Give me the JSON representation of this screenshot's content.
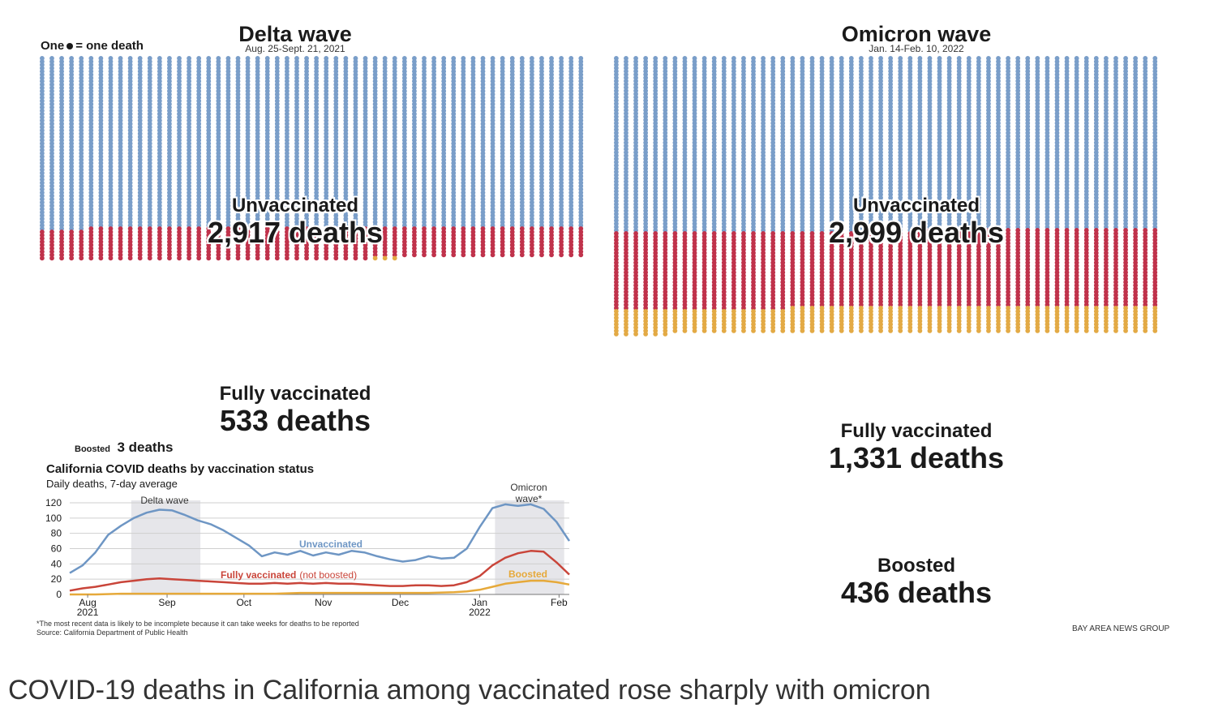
{
  "legend": {
    "prefix": "One",
    "suffix": "= one death"
  },
  "delta": {
    "title": "Delta wave",
    "dates": "Aug. 25-Sept. 21, 2021",
    "unvax_label": "Unvaccinated",
    "unvax_count": "2,917 deaths",
    "fully_label": "Fully vaccinated",
    "fully_count": "533 deaths",
    "boosted_label": "Boosted",
    "boosted_count": "3 deaths"
  },
  "omicron": {
    "title": "Omicron wave",
    "dates": "Jan. 14-Feb. 10, 2022",
    "unvax_label": "Unvaccinated",
    "unvax_count": "2,999 deaths",
    "fully_label": "Fully vaccinated",
    "fully_count": "1,331 deaths",
    "boosted_label": "Boosted",
    "boosted_count": "436 deaths"
  },
  "colors": {
    "unvax": "#7a9ec9",
    "fully": "#c0324b",
    "boosted": "#e3aa45",
    "line_unvax": "#6e96c4",
    "line_fully": "#c9453a",
    "line_boosted": "#e6a93a",
    "band": "#e6e6ea"
  },
  "chart_data": [
    {
      "type": "dot_matrix",
      "title": "Delta wave",
      "subtitle": "Aug. 25-Sept. 21, 2021",
      "unit": "One dot = one death",
      "categories": [
        "Unvaccinated",
        "Fully vaccinated",
        "Boosted"
      ],
      "values": [
        2917,
        533,
        3
      ]
    },
    {
      "type": "dot_matrix",
      "title": "Omicron wave",
      "subtitle": "Jan. 14-Feb. 10, 2022",
      "unit": "One dot = one death",
      "categories": [
        "Unvaccinated",
        "Fully vaccinated",
        "Boosted"
      ],
      "values": [
        2999,
        1331,
        436
      ]
    },
    {
      "type": "line",
      "title": "California COVID deaths by vaccination status",
      "subtitle": "Daily deaths, 7-day average",
      "ylim": [
        0,
        120
      ],
      "yticks": [
        0,
        20,
        40,
        60,
        80,
        100,
        120
      ],
      "xlim": [
        0,
        195
      ],
      "xticks": [
        {
          "x": 7,
          "label": "Aug",
          "sub": "2021"
        },
        {
          "x": 38,
          "label": "Sep",
          "sub": ""
        },
        {
          "x": 68,
          "label": "Oct",
          "sub": ""
        },
        {
          "x": 99,
          "label": "Nov",
          "sub": ""
        },
        {
          "x": 129,
          "label": "Dec",
          "sub": ""
        },
        {
          "x": 160,
          "label": "Jan",
          "sub": "2022"
        },
        {
          "x": 191,
          "label": "Feb",
          "sub": ""
        }
      ],
      "bands": [
        {
          "x0": 24,
          "x1": 51,
          "label": "Delta wave"
        },
        {
          "x0": 166,
          "x1": 193,
          "label": "Omicron wave*"
        }
      ],
      "series": [
        {
          "name": "Unvaccinated",
          "x": [
            0,
            5,
            10,
            15,
            20,
            25,
            30,
            35,
            40,
            45,
            50,
            55,
            60,
            65,
            70,
            75,
            80,
            85,
            90,
            95,
            100,
            105,
            110,
            115,
            120,
            125,
            130,
            135,
            140,
            145,
            150,
            155,
            160,
            165,
            170,
            175,
            180,
            185,
            190,
            195
          ],
          "y": [
            28,
            38,
            55,
            78,
            90,
            100,
            107,
            111,
            110,
            104,
            97,
            92,
            84,
            74,
            64,
            50,
            55,
            52,
            57,
            51,
            55,
            52,
            57,
            55,
            50,
            46,
            43,
            45,
            50,
            47,
            48,
            60,
            88,
            113,
            118,
            116,
            118,
            112,
            95,
            70
          ]
        },
        {
          "name": "Fully vaccinated",
          "annotation": "(not boosted)",
          "x": [
            0,
            5,
            10,
            15,
            20,
            25,
            30,
            35,
            40,
            45,
            50,
            55,
            60,
            65,
            70,
            75,
            80,
            85,
            90,
            95,
            100,
            105,
            110,
            115,
            120,
            125,
            130,
            135,
            140,
            145,
            150,
            155,
            160,
            165,
            170,
            175,
            180,
            185,
            190,
            195
          ],
          "y": [
            5,
            8,
            10,
            13,
            16,
            18,
            20,
            21,
            20,
            19,
            18,
            17,
            16,
            15,
            14,
            14,
            15,
            14,
            15,
            14,
            15,
            14,
            14,
            13,
            12,
            11,
            11,
            12,
            12,
            11,
            12,
            16,
            24,
            38,
            48,
            54,
            57,
            56,
            42,
            26
          ]
        },
        {
          "name": "Boosted",
          "x": [
            0,
            10,
            20,
            30,
            40,
            50,
            60,
            70,
            80,
            90,
            100,
            110,
            120,
            130,
            140,
            150,
            155,
            160,
            165,
            170,
            175,
            180,
            185,
            190,
            195
          ],
          "y": [
            0,
            0,
            1,
            1,
            1,
            1,
            1,
            1,
            1,
            2,
            2,
            2,
            2,
            2,
            2,
            3,
            4,
            6,
            10,
            14,
            16,
            18,
            18,
            16,
            13
          ]
        }
      ]
    }
  ],
  "line_chart": {
    "title": "California COVID deaths by vaccination status",
    "subtitle": "Daily deaths, 7-day average",
    "band1_label": "Delta wave",
    "band2_label_1": "Omicron",
    "band2_label_2": "wave*",
    "series_unvax_label": "Unvaccinated",
    "series_fully_label": "Fully vaccinated",
    "series_fully_note": "(not boosted)",
    "series_boosted_label": "Boosted",
    "footnote": "*The most recent data is likely to be incomplete because it can take weeks for deaths to be reported",
    "source": "Source: California Department of Public Health"
  },
  "credit": "BAY AREA NEWS GROUP",
  "caption": "COVID-19 deaths in California among vaccinated rose sharply with omicron"
}
